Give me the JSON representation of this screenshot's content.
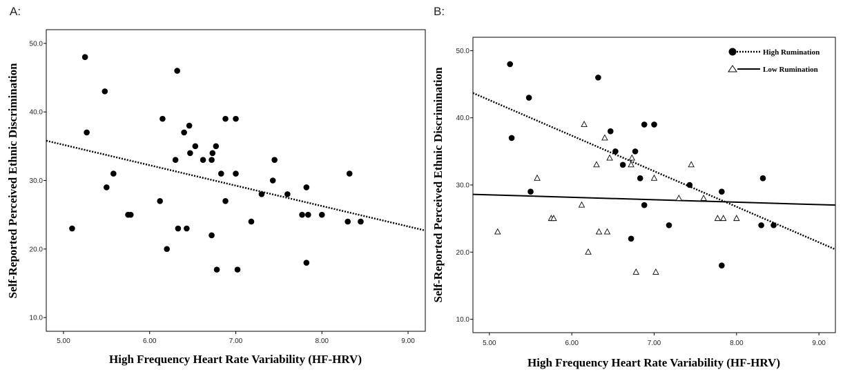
{
  "chart_data": [
    {
      "type": "scatter",
      "panel_label": "A:",
      "xlabel": "High Frequency Heart Rate Variability (HF-HRV)",
      "ylabel": "Self-Reported Perceived Ethnic Discrimination",
      "xlim": [
        4.8,
        9.2
      ],
      "ylim": [
        8,
        52
      ],
      "xticks": [
        "5.00",
        "6.00",
        "7.00",
        "8.00",
        "9.00"
      ],
      "yticks": [
        "10.0",
        "20.0",
        "30.0",
        "40.0",
        "50.0"
      ],
      "grid": false,
      "series": [
        {
          "marker": "filled-circle",
          "points": [
            [
              5.1,
              23
            ],
            [
              5.25,
              48
            ],
            [
              5.27,
              37
            ],
            [
              5.48,
              43
            ],
            [
              5.5,
              29
            ],
            [
              5.58,
              31
            ],
            [
              5.75,
              25
            ],
            [
              5.78,
              25
            ],
            [
              6.12,
              27
            ],
            [
              6.15,
              39
            ],
            [
              6.2,
              20
            ],
            [
              6.3,
              33
            ],
            [
              6.32,
              46
            ],
            [
              6.33,
              23
            ],
            [
              6.4,
              37
            ],
            [
              6.43,
              23
            ],
            [
              6.46,
              38
            ],
            [
              6.47,
              34
            ],
            [
              6.53,
              35
            ],
            [
              6.62,
              33
            ],
            [
              6.72,
              22
            ],
            [
              6.72,
              33
            ],
            [
              6.73,
              34
            ],
            [
              6.77,
              35
            ],
            [
              6.78,
              17
            ],
            [
              6.83,
              31
            ],
            [
              6.88,
              27
            ],
            [
              6.88,
              39
            ],
            [
              7.0,
              39
            ],
            [
              7.0,
              31
            ],
            [
              7.02,
              17
            ],
            [
              7.18,
              24
            ],
            [
              7.3,
              28
            ],
            [
              7.43,
              30
            ],
            [
              7.45,
              33
            ],
            [
              7.6,
              28
            ],
            [
              7.77,
              25
            ],
            [
              7.82,
              29
            ],
            [
              7.82,
              18
            ],
            [
              7.84,
              25
            ],
            [
              8.0,
              25
            ],
            [
              8.3,
              24
            ],
            [
              8.32,
              31
            ],
            [
              8.45,
              24
            ]
          ]
        }
      ],
      "fit_lines": [
        {
          "style": "dotted",
          "from": [
            4.8,
            35.8
          ],
          "to": [
            9.2,
            22.7
          ]
        }
      ]
    },
    {
      "type": "scatter",
      "panel_label": "B:",
      "xlabel": "High Frequency Heart Rate Variability (HF-HRV)",
      "ylabel": "Self-Reported Perceived Ethnic Discrimination",
      "xlim": [
        4.8,
        9.2
      ],
      "ylim": [
        8,
        52
      ],
      "xticks": [
        "5.00",
        "6.00",
        "7.00",
        "8.00",
        "9.00"
      ],
      "yticks": [
        "10.0",
        "20.0",
        "30.0",
        "40.0",
        "50.0"
      ],
      "grid": false,
      "legend_position": "top-right",
      "series": [
        {
          "name": "High Rumination",
          "marker": "filled-circle",
          "line_style": "dotted",
          "points": [
            [
              5.25,
              48
            ],
            [
              5.27,
              37
            ],
            [
              5.48,
              43
            ],
            [
              5.5,
              29
            ],
            [
              6.32,
              46
            ],
            [
              6.47,
              38
            ],
            [
              6.53,
              35
            ],
            [
              6.62,
              33
            ],
            [
              6.72,
              22
            ],
            [
              6.77,
              35
            ],
            [
              6.83,
              31
            ],
            [
              6.88,
              27
            ],
            [
              6.88,
              39
            ],
            [
              7.0,
              39
            ],
            [
              7.18,
              24
            ],
            [
              7.43,
              30
            ],
            [
              7.82,
              29
            ],
            [
              7.82,
              18
            ],
            [
              8.3,
              24
            ],
            [
              8.32,
              31
            ],
            [
              8.45,
              24
            ]
          ],
          "fit_line": {
            "from": [
              4.8,
              43.7
            ],
            "to": [
              9.2,
              20.4
            ]
          }
        },
        {
          "name": "Low Rumination",
          "marker": "open-triangle",
          "line_style": "solid",
          "points": [
            [
              5.1,
              23
            ],
            [
              5.58,
              31
            ],
            [
              5.75,
              25
            ],
            [
              5.78,
              25
            ],
            [
              6.12,
              27
            ],
            [
              6.15,
              39
            ],
            [
              6.2,
              20
            ],
            [
              6.3,
              33
            ],
            [
              6.33,
              23
            ],
            [
              6.4,
              37
            ],
            [
              6.43,
              23
            ],
            [
              6.46,
              34
            ],
            [
              6.72,
              33
            ],
            [
              6.73,
              34
            ],
            [
              6.78,
              17
            ],
            [
              7.0,
              31
            ],
            [
              7.02,
              17
            ],
            [
              7.3,
              28
            ],
            [
              7.45,
              33
            ],
            [
              7.6,
              28
            ],
            [
              7.77,
              25
            ],
            [
              7.84,
              25
            ],
            [
              8.0,
              25
            ]
          ],
          "fit_line": {
            "from": [
              4.8,
              28.6
            ],
            "to": [
              9.2,
              27.0
            ]
          }
        }
      ]
    }
  ]
}
